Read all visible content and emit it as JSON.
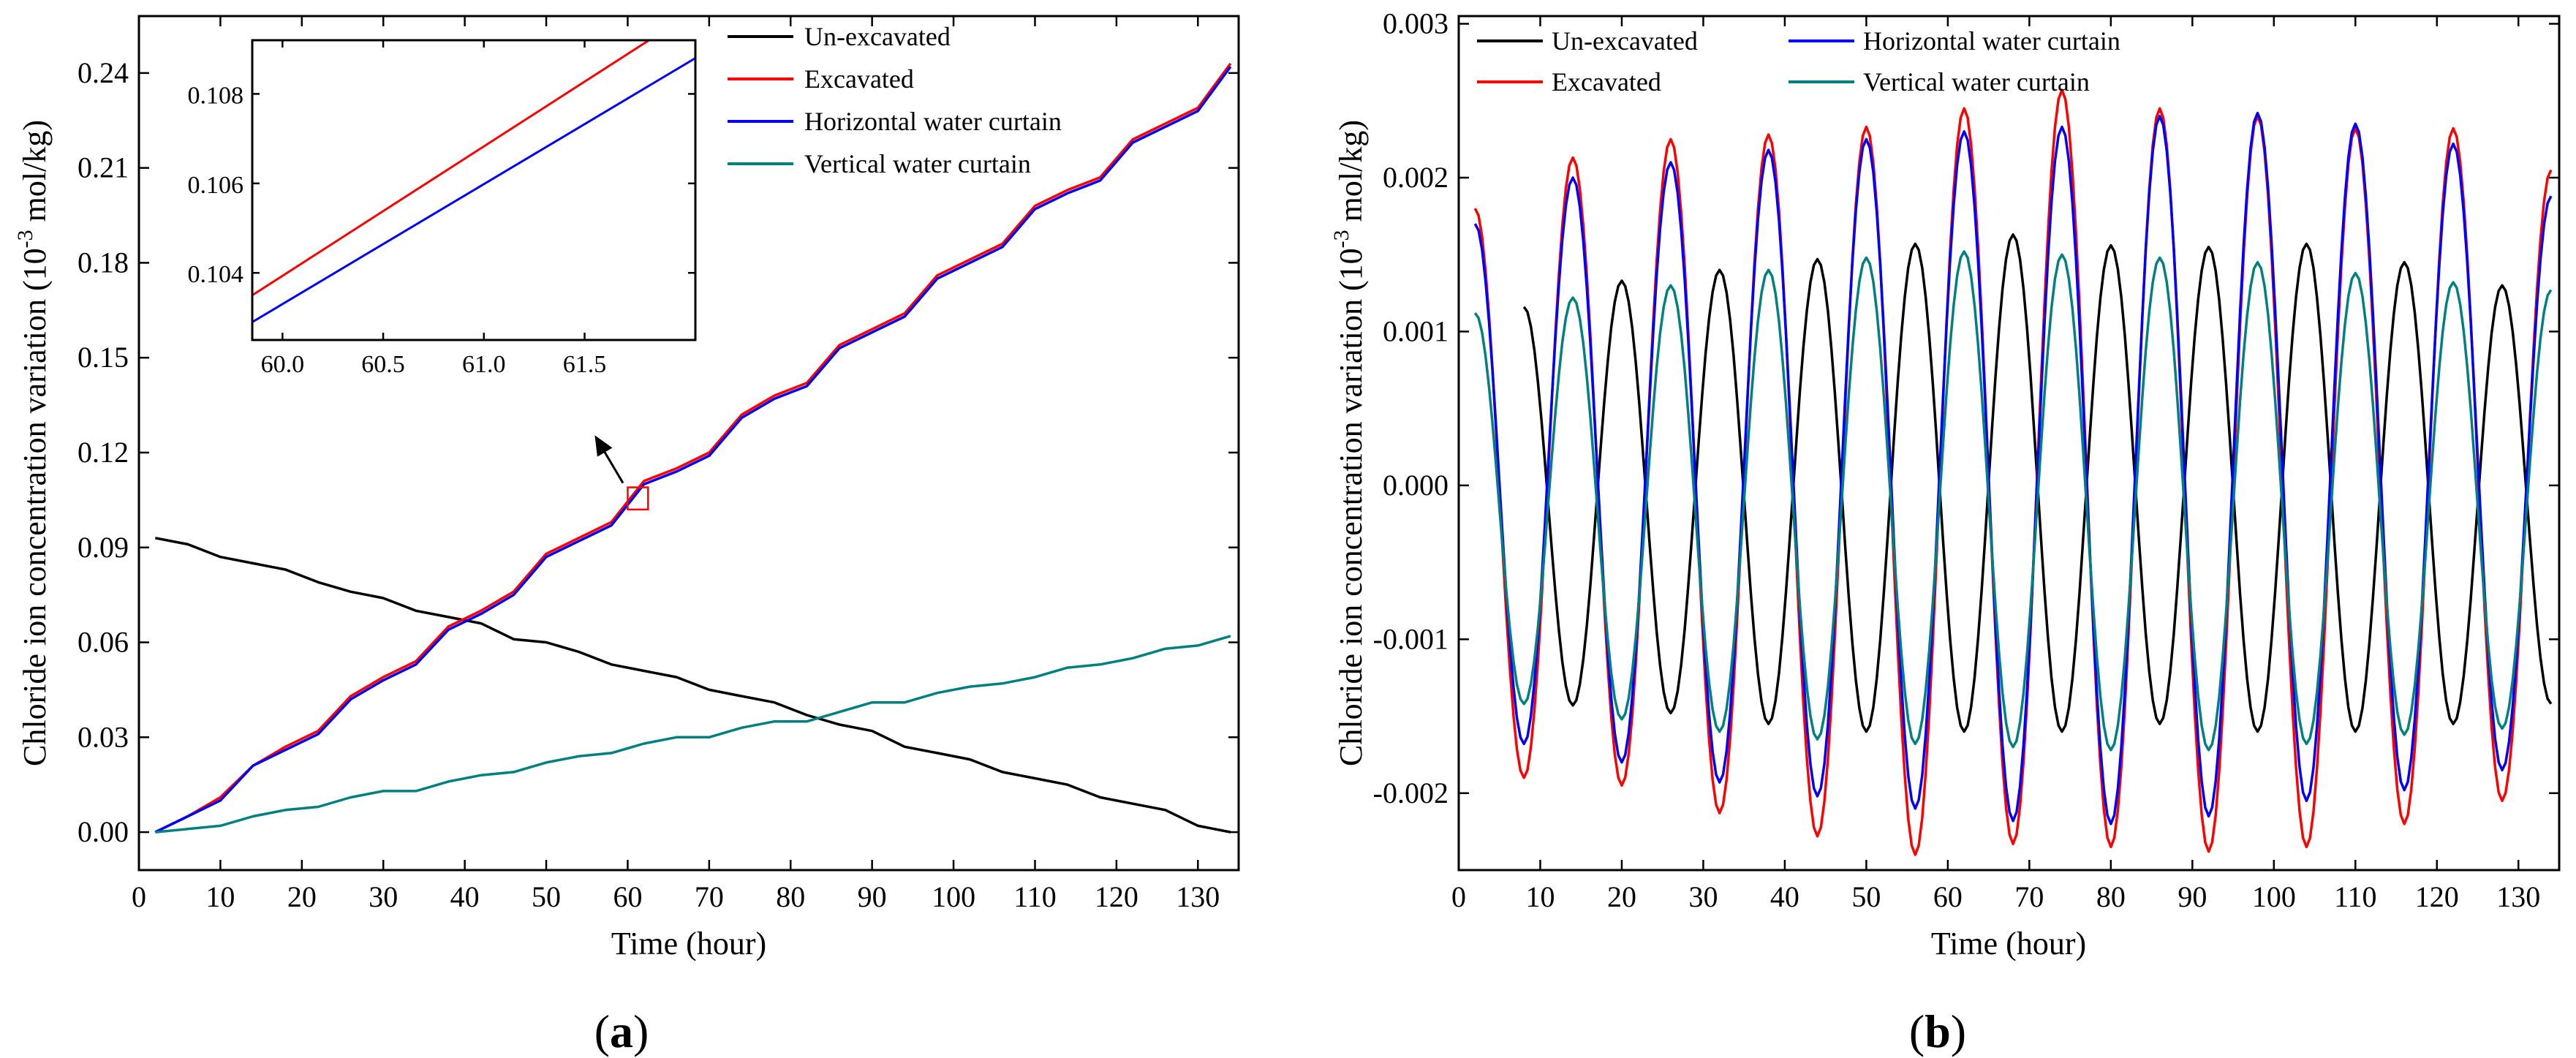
{
  "colors": {
    "un_excavated": "#000000",
    "excavated": "#ff0000",
    "horizontal": "#0000ff",
    "vertical": "#008080"
  },
  "panels": {
    "a": {
      "label_open": "(",
      "label_letter": "a",
      "label_close": ")"
    },
    "b": {
      "label_open": "(",
      "label_letter": "b",
      "label_close": ")"
    }
  },
  "chart_data": [
    {
      "type": "line",
      "panel": "a",
      "xlabel": "Time (hour)",
      "ylabel_pre": "Chloride ion concentration variation (10",
      "ylabel_sup": "-3",
      "ylabel_post": " mol/kg)",
      "xlim": [
        0,
        135
      ],
      "ylim": [
        -0.012,
        0.258
      ],
      "xticks": [
        "0",
        "10",
        "20",
        "30",
        "40",
        "50",
        "60",
        "70",
        "80",
        "90",
        "100",
        "110",
        "120",
        "130"
      ],
      "xtick_values": [
        0,
        10,
        20,
        30,
        40,
        50,
        60,
        70,
        80,
        90,
        100,
        110,
        120,
        130
      ],
      "yticks": [
        "0.00",
        "0.03",
        "0.06",
        "0.09",
        "0.12",
        "0.15",
        "0.18",
        "0.21",
        "0.24"
      ],
      "ytick_values": [
        0,
        0.03,
        0.06,
        0.09,
        0.12,
        0.15,
        0.18,
        0.21,
        0.24
      ],
      "legend": [
        "Un-excavated",
        "Excavated",
        "Horizontal water curtain",
        "Vertical water curtain"
      ],
      "legend_position": "top-right",
      "x": [
        2,
        6,
        10,
        14,
        18,
        22,
        26,
        30,
        34,
        38,
        42,
        46,
        50,
        54,
        58,
        62,
        66,
        70,
        74,
        78,
        82,
        86,
        90,
        94,
        98,
        102,
        106,
        110,
        114,
        118,
        122,
        126,
        130,
        134
      ],
      "series": [
        {
          "name": "Un-excavated",
          "color_key": "un_excavated",
          "values": [
            0.093,
            0.091,
            0.087,
            0.085,
            0.083,
            0.079,
            0.076,
            0.074,
            0.07,
            0.068,
            0.066,
            0.061,
            0.06,
            0.057,
            0.053,
            0.051,
            0.049,
            0.045,
            0.043,
            0.041,
            0.037,
            0.034,
            0.032,
            0.027,
            0.025,
            0.023,
            0.019,
            0.017,
            0.015,
            0.011,
            0.009,
            0.007,
            0.002,
            0.0
          ]
        },
        {
          "name": "Excavated",
          "color_key": "excavated",
          "values": [
            0.0,
            0.005,
            0.011,
            0.021,
            0.027,
            0.032,
            0.043,
            0.049,
            0.054,
            0.065,
            0.07,
            0.076,
            0.088,
            0.093,
            0.098,
            0.111,
            0.115,
            0.12,
            0.132,
            0.138,
            0.142,
            0.154,
            0.159,
            0.164,
            0.176,
            0.181,
            0.186,
            0.198,
            0.203,
            0.207,
            0.219,
            0.224,
            0.229,
            0.243
          ]
        },
        {
          "name": "Horizontal water curtain",
          "color_key": "horizontal",
          "values": [
            0.0,
            0.005,
            0.01,
            0.021,
            0.026,
            0.031,
            0.042,
            0.048,
            0.053,
            0.064,
            0.069,
            0.075,
            0.087,
            0.092,
            0.097,
            0.11,
            0.114,
            0.119,
            0.131,
            0.137,
            0.141,
            0.153,
            0.158,
            0.163,
            0.175,
            0.18,
            0.185,
            0.197,
            0.202,
            0.206,
            0.218,
            0.223,
            0.228,
            0.242
          ]
        },
        {
          "name": "Vertical water curtain",
          "color_key": "vertical",
          "values": [
            0.0,
            0.001,
            0.002,
            0.005,
            0.007,
            0.008,
            0.011,
            0.013,
            0.013,
            0.016,
            0.018,
            0.019,
            0.022,
            0.024,
            0.025,
            0.028,
            0.03,
            0.03,
            0.033,
            0.035,
            0.035,
            0.038,
            0.041,
            0.041,
            0.044,
            0.046,
            0.047,
            0.049,
            0.052,
            0.053,
            0.055,
            0.058,
            0.059,
            0.062
          ]
        }
      ],
      "inset": {
        "xlim": [
          59.85,
          62.05
        ],
        "ylim": [
          0.1025,
          0.1092
        ],
        "xticks": [
          "60.0",
          "60.5",
          "61.0",
          "61.5"
        ],
        "xtick_values": [
          60.0,
          60.5,
          61.0,
          61.5
        ],
        "yticks": [
          "0.104",
          "0.106",
          "0.108"
        ],
        "ytick_values": [
          0.104,
          0.106,
          0.108
        ],
        "series": [
          {
            "name": "Excavated",
            "color_key": "excavated",
            "x": [
              59.85,
              61.82
            ],
            "values": [
              0.1035,
              0.1092
            ]
          },
          {
            "name": "Horizontal water curtain",
            "color_key": "horizontal",
            "x": [
              59.85,
              62.05
            ],
            "values": [
              0.1029,
              0.1088
            ]
          }
        ],
        "highlight_box_x": [
          60.0,
          62.5
        ],
        "highlight_box_y": [
          0.102,
          0.109
        ]
      }
    },
    {
      "type": "line",
      "panel": "b",
      "xlabel": "Time (hour)",
      "ylabel_pre": "Chloride ion concentration variation (10",
      "ylabel_sup": "-3",
      "ylabel_post": " mol/kg)",
      "xlim": [
        0,
        135
      ],
      "ylim": [
        -0.0025,
        0.00305
      ],
      "xticks": [
        "0",
        "10",
        "20",
        "30",
        "40",
        "50",
        "60",
        "70",
        "80",
        "90",
        "100",
        "110",
        "120",
        "130"
      ],
      "xtick_values": [
        0,
        10,
        20,
        30,
        40,
        50,
        60,
        70,
        80,
        90,
        100,
        110,
        120,
        130
      ],
      "yticks": [
        "-0.002",
        "-0.001",
        "0.000",
        "0.001",
        "0.002",
        "0.003"
      ],
      "ytick_values": [
        -0.002,
        -0.001,
        0,
        0.001,
        0.002,
        0.003
      ],
      "legend": [
        "Un-excavated",
        "Horizontal water curtain",
        "Excavated",
        "Vertical water curtain"
      ],
      "legend_position": "top",
      "model": "sinusoid, period 12 h",
      "series": [
        {
          "name": "Un-excavated",
          "color_key": "un_excavated",
          "peak_x": [
            8,
            20,
            32,
            44,
            56,
            68,
            80,
            92,
            104,
            116,
            128
          ],
          "peak_y": [
            0.00116,
            0.00133,
            0.0014,
            0.00147,
            0.00157,
            0.00163,
            0.00156,
            0.00155,
            0.00157,
            0.00145,
            0.0013
          ],
          "trough_x": [
            14,
            26,
            38,
            50,
            62,
            74,
            86,
            98,
            110,
            122,
            134
          ],
          "trough_y": [
            -0.00143,
            -0.00148,
            -0.00155,
            -0.0016,
            -0.0016,
            -0.0016,
            -0.00155,
            -0.0016,
            -0.0016,
            -0.00155,
            -0.00142
          ]
        },
        {
          "name": "Excavated",
          "color_key": "excavated",
          "peak_x": [
            2,
            14,
            26,
            38,
            50,
            62,
            74,
            86,
            98,
            110,
            122,
            134
          ],
          "peak_y": [
            0.0018,
            0.00213,
            0.00225,
            0.00228,
            0.00233,
            0.00245,
            0.00257,
            0.00245,
            0.0024,
            0.00232,
            0.00232,
            0.00205
          ],
          "trough_x": [
            8,
            20,
            32,
            44,
            56,
            68,
            80,
            92,
            104,
            116,
            128
          ],
          "trough_y": [
            -0.0019,
            -0.00195,
            -0.00213,
            -0.00228,
            -0.0024,
            -0.00233,
            -0.00235,
            -0.00238,
            -0.00235,
            -0.0022,
            -0.00205
          ]
        },
        {
          "name": "Horizontal water curtain",
          "color_key": "horizontal",
          "peak_x": [
            2,
            14,
            26,
            38,
            50,
            62,
            74,
            86,
            98,
            110,
            122,
            134
          ],
          "peak_y": [
            0.0017,
            0.002,
            0.0021,
            0.00218,
            0.00225,
            0.0023,
            0.00233,
            0.0024,
            0.00242,
            0.00235,
            0.00222,
            0.00188
          ],
          "trough_x": [
            8,
            20,
            32,
            44,
            56,
            68,
            80,
            92,
            104,
            116,
            128
          ],
          "trough_y": [
            -0.00168,
            -0.0018,
            -0.00193,
            -0.00202,
            -0.0021,
            -0.00218,
            -0.0022,
            -0.00215,
            -0.00205,
            -0.00198,
            -0.00185
          ]
        },
        {
          "name": "Vertical water curtain",
          "color_key": "vertical",
          "peak_x": [
            2,
            14,
            26,
            38,
            50,
            62,
            74,
            86,
            98,
            110,
            122,
            134
          ],
          "peak_y": [
            0.00112,
            0.00122,
            0.0013,
            0.0014,
            0.00148,
            0.00152,
            0.0015,
            0.00148,
            0.00145,
            0.00138,
            0.00132,
            0.00127
          ],
          "trough_x": [
            8,
            20,
            32,
            44,
            56,
            68,
            80,
            92,
            104,
            116,
            128
          ],
          "trough_y": [
            -0.00142,
            -0.00152,
            -0.0016,
            -0.00165,
            -0.00168,
            -0.0017,
            -0.00172,
            -0.00172,
            -0.00168,
            -0.00162,
            -0.00158
          ]
        }
      ]
    }
  ]
}
